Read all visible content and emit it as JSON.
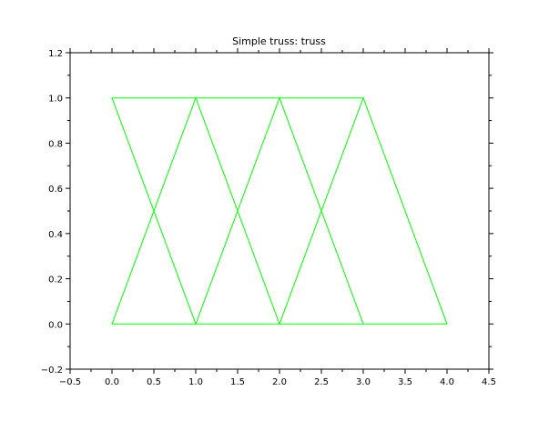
{
  "chart_data": {
    "type": "line",
    "title": "Simple truss: truss",
    "xlabel": "",
    "ylabel": "",
    "xlim": [
      -0.5,
      4.5
    ],
    "ylim": [
      -0.2,
      1.2
    ],
    "x_ticks": [
      "−0.5",
      "0.0",
      "0.5",
      "1.0",
      "1.5",
      "2.0",
      "2.5",
      "3.0",
      "3.5",
      "4.0",
      "4.5"
    ],
    "x_tick_values": [
      -0.5,
      0.0,
      0.5,
      1.0,
      1.5,
      2.0,
      2.5,
      3.0,
      3.5,
      4.0,
      4.5
    ],
    "y_ticks": [
      "−0.2",
      "0.0",
      "0.2",
      "0.4",
      "0.6",
      "0.8",
      "1.0",
      "1.2"
    ],
    "y_tick_values": [
      -0.2,
      0.0,
      0.2,
      0.4,
      0.6,
      0.8,
      1.0,
      1.2
    ],
    "grid": false,
    "line_color": "#00ff00",
    "members": [
      {
        "from": [
          0,
          0
        ],
        "to": [
          1,
          0
        ]
      },
      {
        "from": [
          1,
          0
        ],
        "to": [
          2,
          0
        ]
      },
      {
        "from": [
          2,
          0
        ],
        "to": [
          3,
          0
        ]
      },
      {
        "from": [
          3,
          0
        ],
        "to": [
          4,
          0
        ]
      },
      {
        "from": [
          0,
          1
        ],
        "to": [
          1,
          1
        ]
      },
      {
        "from": [
          1,
          1
        ],
        "to": [
          2,
          1
        ]
      },
      {
        "from": [
          2,
          1
        ],
        "to": [
          3,
          1
        ]
      },
      {
        "from": [
          0,
          1
        ],
        "to": [
          1,
          0
        ]
      },
      {
        "from": [
          1,
          0
        ],
        "to": [
          2,
          1
        ]
      },
      {
        "from": [
          2,
          1
        ],
        "to": [
          3,
          0
        ]
      },
      {
        "from": [
          0,
          0
        ],
        "to": [
          1,
          1
        ]
      },
      {
        "from": [
          1,
          1
        ],
        "to": [
          2,
          0
        ]
      },
      {
        "from": [
          2,
          0
        ],
        "to": [
          3,
          1
        ]
      },
      {
        "from": [
          3,
          1
        ],
        "to": [
          4,
          0
        ]
      }
    ]
  }
}
